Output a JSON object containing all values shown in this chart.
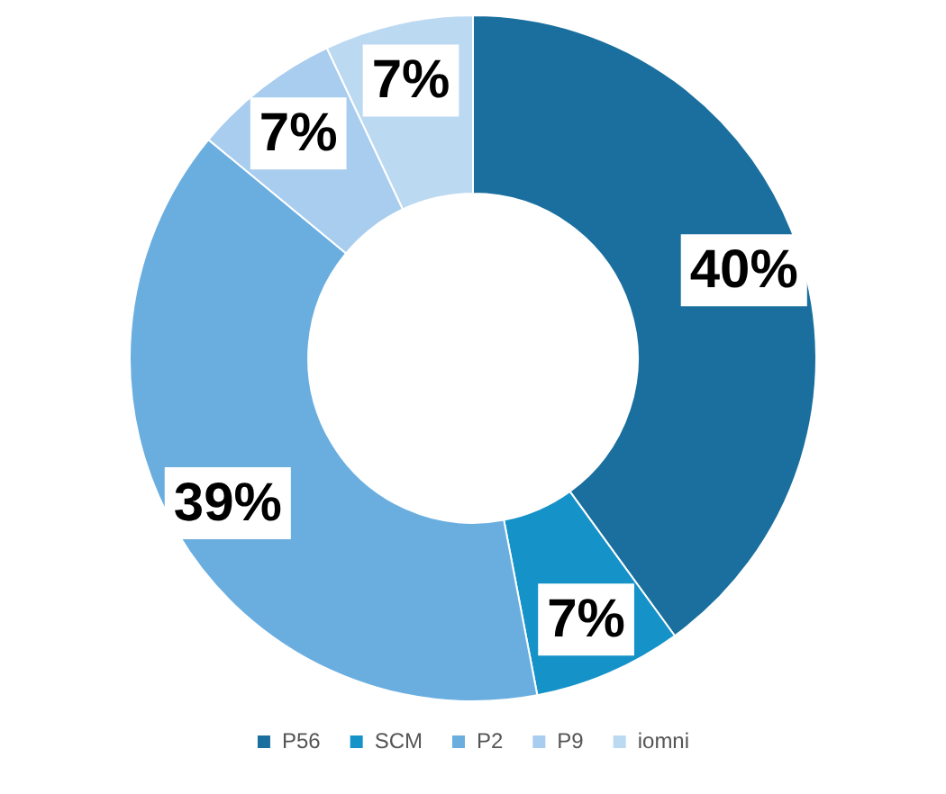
{
  "chart_data": {
    "type": "donut",
    "categories": [
      "P56",
      "SCM",
      "P2",
      "P9",
      "iomni"
    ],
    "values": [
      40,
      7,
      39,
      7,
      7
    ],
    "colors": [
      "#1a6f9e",
      "#1592c8",
      "#6aaee0",
      "#a9cdef",
      "#bcd9f2"
    ],
    "value_labels": [
      "40%",
      "7%",
      "39%",
      "7%",
      "7%"
    ],
    "legend": "bottom"
  }
}
